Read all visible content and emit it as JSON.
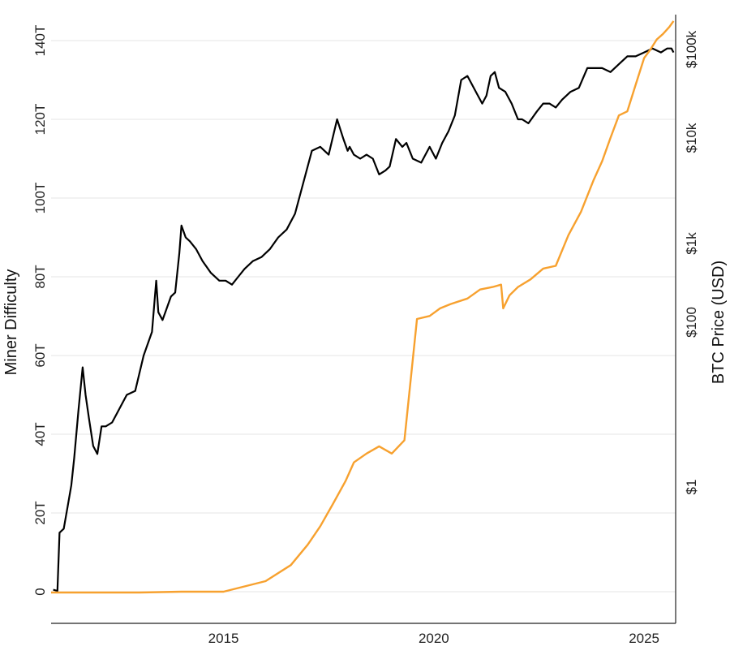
{
  "chart_data": {
    "type": "line",
    "title": "",
    "xlabel": "",
    "ylabel_left": "Miner Difficulty",
    "ylabel_right": "BTC Price (USD)",
    "grid": true,
    "legend": "none",
    "x_ticks": [
      "2015",
      "2020",
      "2025"
    ],
    "x_range": [
      2010.9,
      2025.7
    ],
    "y_left_ticks": [
      "0",
      "20T",
      "40T",
      "60T",
      "80T",
      "100T",
      "120T",
      "140T"
    ],
    "y_left_range": [
      -2,
      140
    ],
    "y_right_ticks": [
      "$1",
      "$100",
      "$1k",
      "$10k",
      "$100k"
    ],
    "y_right_scale": "log",
    "y_right_note": "right axis ticks are not evenly spaced: $1 near the left 25T level, $100 near 68T, $1k near 92T, $10k near 116T, $100k near 138T",
    "colors": {
      "difficulty": "#000000",
      "price": "#f7a12f"
    },
    "series": [
      {
        "axis": "left",
        "unit": "T",
        "x": [
          2010.95,
          2011.05,
          2011.1,
          2011.2,
          2011.3,
          2011.38,
          2011.45,
          2011.55,
          2011.65,
          2011.72,
          2011.8,
          2011.9,
          2012.0,
          2012.1,
          2012.2,
          2012.35,
          2012.5,
          2012.7,
          2012.9,
          2013.1,
          2013.3,
          2013.4,
          2013.45,
          2013.55,
          2013.65,
          2013.75,
          2013.85,
          2013.95,
          2014.0,
          2014.1,
          2014.2,
          2014.35,
          2014.5,
          2014.7,
          2014.9,
          2015.05,
          2015.2,
          2015.35,
          2015.5,
          2015.7,
          2015.9,
          2016.1,
          2016.3,
          2016.5,
          2016.7,
          2016.9,
          2017.1,
          2017.3,
          2017.5,
          2017.7,
          2017.85,
          2017.95,
          2018.0,
          2018.1,
          2018.25,
          2018.4,
          2018.55,
          2018.7,
          2018.85,
          2018.95,
          2019.1,
          2019.25,
          2019.35,
          2019.5,
          2019.7,
          2019.9,
          2020.05,
          2020.2,
          2020.35,
          2020.5,
          2020.65,
          2020.8,
          2021.0,
          2021.15,
          2021.25,
          2021.35,
          2021.45,
          2021.55,
          2021.7,
          2021.85,
          2022.0,
          2022.1,
          2022.25,
          2022.45,
          2022.6,
          2022.75,
          2022.9,
          2023.05,
          2023.25,
          2023.45,
          2023.65,
          2023.85,
          2024.0,
          2024.2,
          2024.4,
          2024.6,
          2024.8,
          2025.0,
          2025.2,
          2025.4,
          2025.55,
          2025.65,
          2025.7
        ],
        "values": [
          0.5,
          0.2,
          15,
          16,
          22,
          27,
          34,
          46,
          57,
          50,
          44,
          37,
          35,
          42,
          42,
          43,
          46,
          50,
          51,
          60,
          66,
          79,
          71,
          69,
          72,
          75,
          76,
          86,
          93,
          90,
          89,
          87,
          84,
          81,
          79,
          79,
          78,
          80,
          82,
          84,
          85,
          87,
          90,
          92,
          96,
          104,
          112,
          113,
          111,
          120,
          115,
          112,
          113,
          111,
          110,
          111,
          110,
          106,
          107,
          108,
          115,
          113,
          114,
          110,
          109,
          113,
          110,
          114,
          117,
          121,
          130,
          131,
          127,
          124,
          126,
          131,
          132,
          128,
          127,
          124,
          120,
          120,
          119,
          122,
          124,
          124,
          123,
          125,
          127,
          128,
          133,
          133,
          133,
          132,
          134,
          136,
          136,
          137,
          138,
          137,
          138,
          138,
          137
        ]
      },
      {
        "axis": "right",
        "unit": "USD",
        "x": [
          2010.9,
          2012.0,
          2013.0,
          2014.0,
          2015.0,
          2016.0,
          2016.6,
          2017.0,
          2017.3,
          2017.6,
          2017.9,
          2018.1,
          2018.4,
          2018.7,
          2019.0,
          2019.3,
          2019.6,
          2019.9,
          2020.15,
          2020.4,
          2020.8,
          2021.1,
          2021.4,
          2021.6,
          2021.65,
          2021.8,
          2022.0,
          2022.3,
          2022.6,
          2022.9,
          2023.2,
          2023.5,
          2023.8,
          2024.0,
          2024.2,
          2024.4,
          2024.6,
          2024.8,
          2025.0,
          2025.15,
          2025.3,
          2025.45,
          2025.6,
          2025.7
        ],
        "values": [
          1,
          1,
          1,
          1.5,
          1.5,
          2,
          3,
          5,
          8,
          14,
          25,
          40,
          50,
          60,
          50,
          70,
          110,
          120,
          150,
          170,
          200,
          260,
          280,
          300,
          150,
          220,
          280,
          350,
          480,
          520,
          1200,
          2000,
          4000,
          6000,
          10000,
          18000,
          20000,
          40000,
          80000,
          100000,
          130000,
          150000,
          180000,
          210000
        ]
      }
    ]
  }
}
